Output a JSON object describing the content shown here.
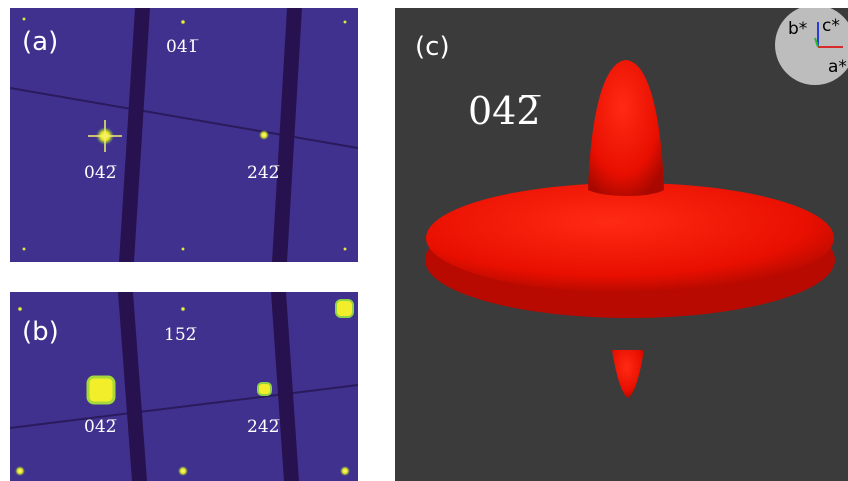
{
  "panels": [
    {
      "label": "(a)",
      "reflections": [
        "041̅",
        "042̅",
        "242̅"
      ]
    },
    {
      "label": "(b)",
      "reflections": [
        "152̅",
        "042̅",
        "242̅"
      ]
    },
    {
      "label": "(c)",
      "reflection": "042̅",
      "axes": [
        "b*",
        "c*",
        "a*"
      ]
    }
  ]
}
